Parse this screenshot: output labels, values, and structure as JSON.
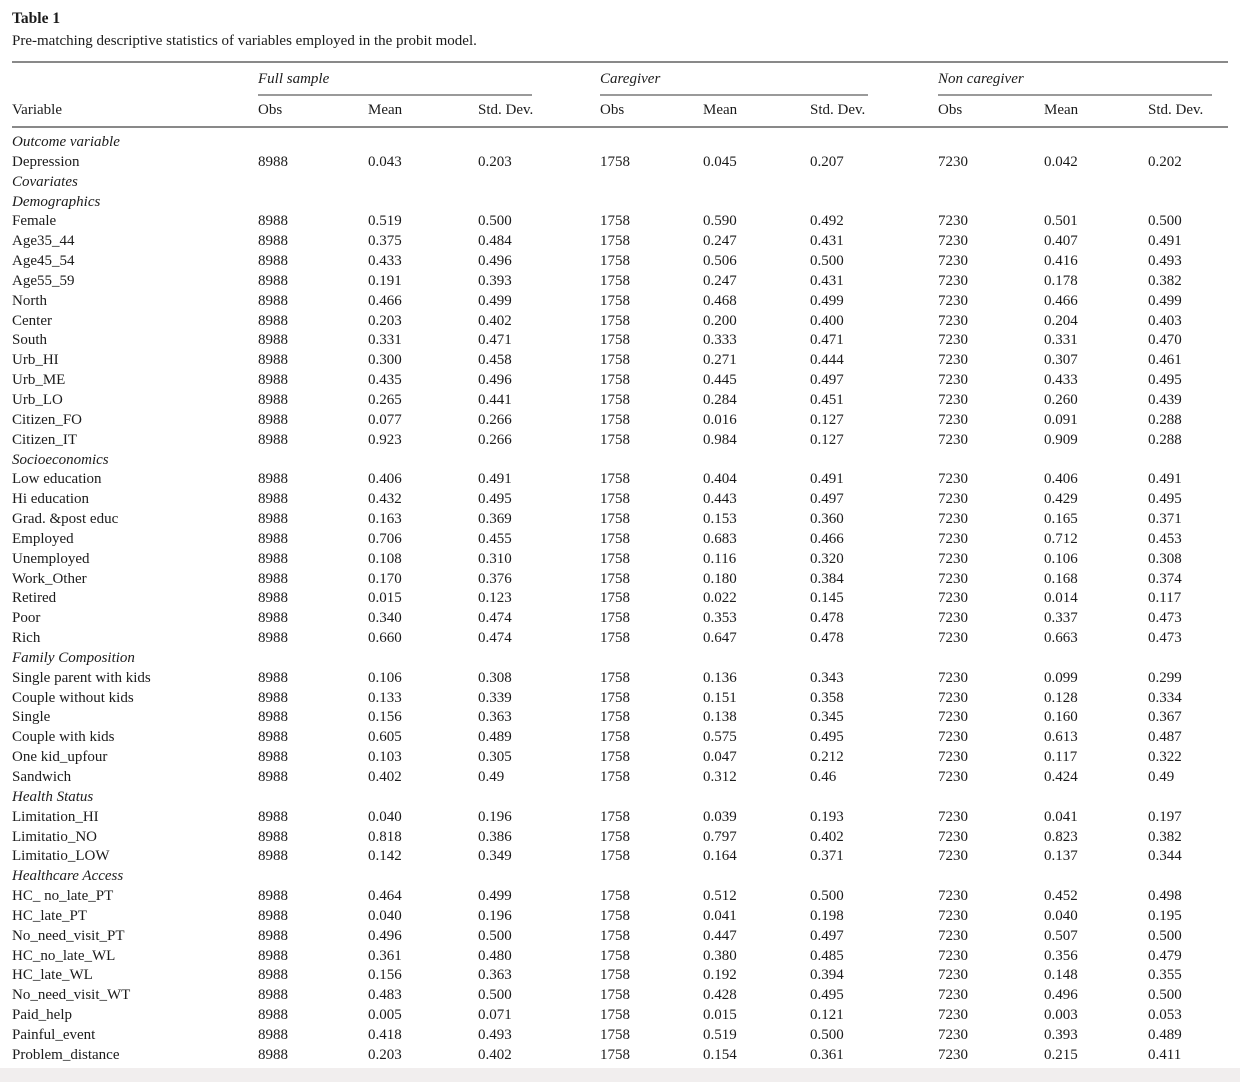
{
  "title": "Table 1",
  "caption": "Pre-matching descriptive statistics of variables employed in the probit model.",
  "table": {
    "variable_header": "Variable",
    "groups": [
      {
        "label": "Full sample",
        "subcolumns": [
          "Obs",
          "Mean",
          "Std. Dev."
        ]
      },
      {
        "label": "Caregiver",
        "subcolumns": [
          "Obs",
          "Mean",
          "Std. Dev."
        ]
      },
      {
        "label": "Non caregiver",
        "subcolumns": [
          "Obs",
          "Mean",
          "Std. Dev."
        ]
      }
    ],
    "sections": [
      {
        "heading": "Outcome variable",
        "style": "bold-italic",
        "rows": [
          {
            "label": "Depression",
            "values": [
              "8988",
              "0.043",
              "0.203",
              "1758",
              "0.045",
              "0.207",
              "7230",
              "0.042",
              "0.202"
            ]
          }
        ]
      },
      {
        "heading": "Covariates",
        "style": "bold-italic",
        "rows": []
      },
      {
        "heading": "Demographics",
        "style": "italic",
        "rows": [
          {
            "label": "Female",
            "values": [
              "8988",
              "0.519",
              "0.500",
              "1758",
              "0.590",
              "0.492",
              "7230",
              "0.501",
              "0.500"
            ]
          },
          {
            "label": "Age35_44",
            "values": [
              "8988",
              "0.375",
              "0.484",
              "1758",
              "0.247",
              "0.431",
              "7230",
              "0.407",
              "0.491"
            ]
          },
          {
            "label": "Age45_54",
            "values": [
              "8988",
              "0.433",
              "0.496",
              "1758",
              "0.506",
              "0.500",
              "7230",
              "0.416",
              "0.493"
            ]
          },
          {
            "label": "Age55_59",
            "values": [
              "8988",
              "0.191",
              "0.393",
              "1758",
              "0.247",
              "0.431",
              "7230",
              "0.178",
              "0.382"
            ]
          },
          {
            "label": "North",
            "values": [
              "8988",
              "0.466",
              "0.499",
              "1758",
              "0.468",
              "0.499",
              "7230",
              "0.466",
              "0.499"
            ]
          },
          {
            "label": "Center",
            "values": [
              "8988",
              "0.203",
              "0.402",
              "1758",
              "0.200",
              "0.400",
              "7230",
              "0.204",
              "0.403"
            ]
          },
          {
            "label": "South",
            "values": [
              "8988",
              "0.331",
              "0.471",
              "1758",
              "0.333",
              "0.471",
              "7230",
              "0.331",
              "0.470"
            ]
          },
          {
            "label": "Urb_HI",
            "values": [
              "8988",
              "0.300",
              "0.458",
              "1758",
              "0.271",
              "0.444",
              "7230",
              "0.307",
              "0.461"
            ]
          },
          {
            "label": "Urb_ME",
            "values": [
              "8988",
              "0.435",
              "0.496",
              "1758",
              "0.445",
              "0.497",
              "7230",
              "0.433",
              "0.495"
            ]
          },
          {
            "label": "Urb_LO",
            "values": [
              "8988",
              "0.265",
              "0.441",
              "1758",
              "0.284",
              "0.451",
              "7230",
              "0.260",
              "0.439"
            ]
          },
          {
            "label": "Citizen_FO",
            "values": [
              "8988",
              "0.077",
              "0.266",
              "1758",
              "0.016",
              "0.127",
              "7230",
              "0.091",
              "0.288"
            ]
          },
          {
            "label": "Citizen_IT",
            "values": [
              "8988",
              "0.923",
              "0.266",
              "1758",
              "0.984",
              "0.127",
              "7230",
              "0.909",
              "0.288"
            ]
          }
        ]
      },
      {
        "heading": "Socioeconomics",
        "style": "italic",
        "rows": [
          {
            "label": "Low education",
            "values": [
              "8988",
              "0.406",
              "0.491",
              "1758",
              "0.404",
              "0.491",
              "7230",
              "0.406",
              "0.491"
            ]
          },
          {
            "label": "Hi education",
            "values": [
              "8988",
              "0.432",
              "0.495",
              "1758",
              "0.443",
              "0.497",
              "7230",
              "0.429",
              "0.495"
            ]
          },
          {
            "label": "Grad. &post educ",
            "values": [
              "8988",
              "0.163",
              "0.369",
              "1758",
              "0.153",
              "0.360",
              "7230",
              "0.165",
              "0.371"
            ]
          },
          {
            "label": "Employed",
            "values": [
              "8988",
              "0.706",
              "0.455",
              "1758",
              "0.683",
              "0.466",
              "7230",
              "0.712",
              "0.453"
            ]
          },
          {
            "label": "Unemployed",
            "values": [
              "8988",
              "0.108",
              "0.310",
              "1758",
              "0.116",
              "0.320",
              "7230",
              "0.106",
              "0.308"
            ]
          },
          {
            "label": "Work_Other",
            "values": [
              "8988",
              "0.170",
              "0.376",
              "1758",
              "0.180",
              "0.384",
              "7230",
              "0.168",
              "0.374"
            ]
          },
          {
            "label": "Retired",
            "values": [
              "8988",
              "0.015",
              "0.123",
              "1758",
              "0.022",
              "0.145",
              "7230",
              "0.014",
              "0.117"
            ]
          },
          {
            "label": "Poor",
            "values": [
              "8988",
              "0.340",
              "0.474",
              "1758",
              "0.353",
              "0.478",
              "7230",
              "0.337",
              "0.473"
            ]
          },
          {
            "label": "Rich",
            "values": [
              "8988",
              "0.660",
              "0.474",
              "1758",
              "0.647",
              "0.478",
              "7230",
              "0.663",
              "0.473"
            ]
          }
        ]
      },
      {
        "heading": "Family Composition",
        "style": "italic",
        "rows": [
          {
            "label": "Single parent with kids",
            "values": [
              "8988",
              "0.106",
              "0.308",
              "1758",
              "0.136",
              "0.343",
              "7230",
              "0.099",
              "0.299"
            ]
          },
          {
            "label": "Couple without kids",
            "values": [
              "8988",
              "0.133",
              "0.339",
              "1758",
              "0.151",
              "0.358",
              "7230",
              "0.128",
              "0.334"
            ]
          },
          {
            "label": "Single",
            "values": [
              "8988",
              "0.156",
              "0.363",
              "1758",
              "0.138",
              "0.345",
              "7230",
              "0.160",
              "0.367"
            ]
          },
          {
            "label": "Couple with kids",
            "values": [
              "8988",
              "0.605",
              "0.489",
              "1758",
              "0.575",
              "0.495",
              "7230",
              "0.613",
              "0.487"
            ]
          },
          {
            "label": "One kid_upfour",
            "values": [
              "8988",
              "0.103",
              "0.305",
              "1758",
              "0.047",
              "0.212",
              "7230",
              "0.117",
              "0.322"
            ]
          },
          {
            "label": "Sandwich",
            "values": [
              "8988",
              "0.402",
              "0.49",
              "1758",
              "0.312",
              "0.46",
              "7230",
              "0.424",
              "0.49"
            ]
          }
        ]
      },
      {
        "heading": "Health Status",
        "style": "italic",
        "rows": [
          {
            "label": "Limitation_HI",
            "values": [
              "8988",
              "0.040",
              "0.196",
              "1758",
              "0.039",
              "0.193",
              "7230",
              "0.041",
              "0.197"
            ]
          },
          {
            "label": "Limitatio_NO",
            "values": [
              "8988",
              "0.818",
              "0.386",
              "1758",
              "0.797",
              "0.402",
              "7230",
              "0.823",
              "0.382"
            ]
          },
          {
            "label": "Limitatio_LOW",
            "values": [
              "8988",
              "0.142",
              "0.349",
              "1758",
              "0.164",
              "0.371",
              "7230",
              "0.137",
              "0.344"
            ]
          }
        ]
      },
      {
        "heading": "Healthcare Access",
        "style": "italic",
        "rows": [
          {
            "label": "HC_ no_late_PT",
            "values": [
              "8988",
              "0.464",
              "0.499",
              "1758",
              "0.512",
              "0.500",
              "7230",
              "0.452",
              "0.498"
            ]
          },
          {
            "label": "HC_late_PT",
            "values": [
              "8988",
              "0.040",
              "0.196",
              "1758",
              "0.041",
              "0.198",
              "7230",
              "0.040",
              "0.195"
            ]
          },
          {
            "label": "No_need_visit_PT",
            "values": [
              "8988",
              "0.496",
              "0.500",
              "1758",
              "0.447",
              "0.497",
              "7230",
              "0.507",
              "0.500"
            ]
          },
          {
            "label": "HC_no_late_WL",
            "values": [
              "8988",
              "0.361",
              "0.480",
              "1758",
              "0.380",
              "0.485",
              "7230",
              "0.356",
              "0.479"
            ]
          },
          {
            "label": "HC_late_WL",
            "values": [
              "8988",
              "0.156",
              "0.363",
              "1758",
              "0.192",
              "0.394",
              "7230",
              "0.148",
              "0.355"
            ]
          },
          {
            "label": "No_need_visit_WT",
            "values": [
              "8988",
              "0.483",
              "0.500",
              "1758",
              "0.428",
              "0.495",
              "7230",
              "0.496",
              "0.500"
            ]
          },
          {
            "label": "Paid_help",
            "values": [
              "8988",
              "0.005",
              "0.071",
              "1758",
              "0.015",
              "0.121",
              "7230",
              "0.003",
              "0.053"
            ]
          },
          {
            "label": "Painful_event",
            "values": [
              "8988",
              "0.418",
              "0.493",
              "1758",
              "0.519",
              "0.500",
              "7230",
              "0.393",
              "0.489"
            ]
          },
          {
            "label": "Problem_distance",
            "values": [
              "8988",
              "0.203",
              "0.402",
              "1758",
              "0.154",
              "0.361",
              "7230",
              "0.215",
              "0.411"
            ]
          }
        ]
      }
    ]
  }
}
